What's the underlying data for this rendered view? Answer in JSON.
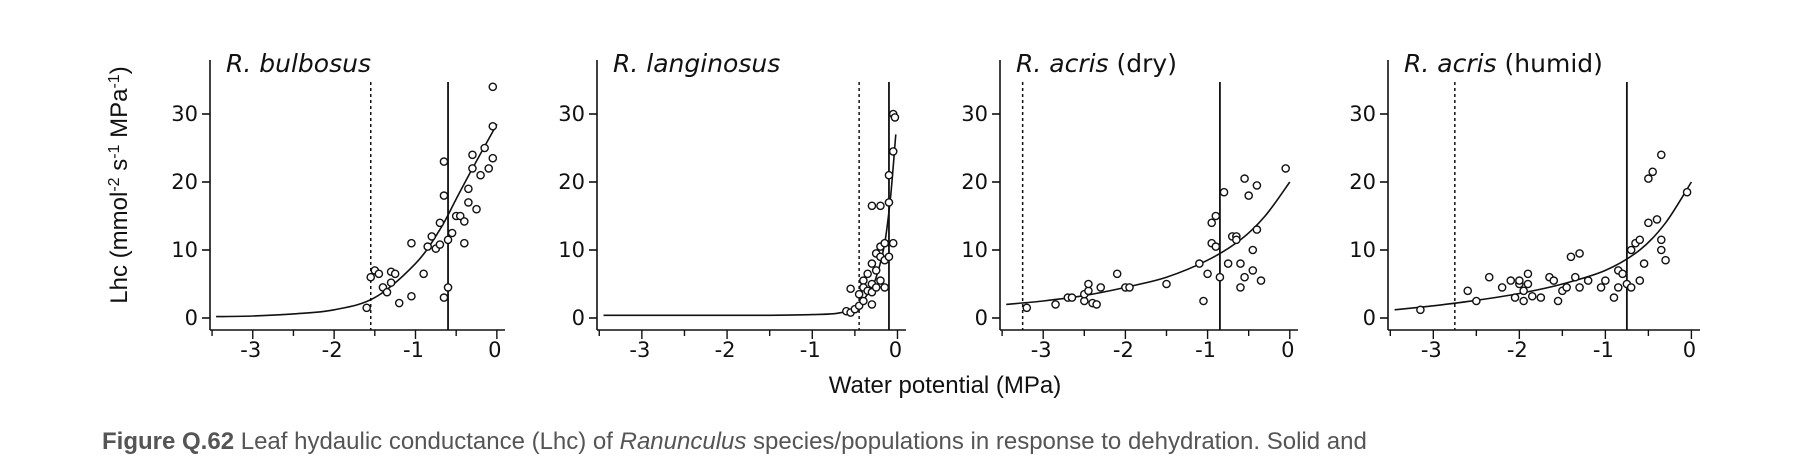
{
  "figure": {
    "ylabel_main": "Lhc (mmol",
    "ylabel_sup1": "-2",
    "ylabel_mid": " s",
    "ylabel_sup2": "-1",
    "ylabel_unit": " MPa",
    "ylabel_sup3": "-1",
    "ylabel_close": ")",
    "xlabel": "Water potential (MPa)"
  },
  "caption": {
    "label": "Figure Q.62",
    "text_before": " Leaf hydaulic conductance (Lhc) of  ",
    "genus": "Ranunculus",
    "text_after": " species/populations in response to dehydration. Solid and"
  },
  "chart_data": [
    {
      "type": "scatter",
      "title_italic": "R. bulbosus",
      "title_plain": "",
      "xlim": [
        -3.55,
        0.1
      ],
      "ylim": [
        -1,
        36
      ],
      "xticks": [
        -3,
        -2,
        -1,
        0
      ],
      "xtick_labels": [
        "-3",
        "-2",
        "-1",
        "0"
      ],
      "yticks": [
        0,
        10,
        20,
        30
      ],
      "ytick_labels": [
        "0",
        "10",
        "20",
        "30"
      ],
      "dotted_line_x": -1.55,
      "solid_line_x": -0.6,
      "curve": [
        [
          -3.45,
          0.2
        ],
        [
          -3.0,
          0.3
        ],
        [
          -2.5,
          0.6
        ],
        [
          -2.0,
          1.2
        ],
        [
          -1.5,
          3.0
        ],
        [
          -1.0,
          8.0
        ],
        [
          -0.7,
          13.0
        ],
        [
          -0.5,
          17.5
        ],
        [
          -0.3,
          22.0
        ],
        [
          0.0,
          28.5
        ]
      ],
      "points": [
        [
          -1.6,
          1.5
        ],
        [
          -1.55,
          6.0
        ],
        [
          -1.5,
          7.0
        ],
        [
          -1.45,
          6.5
        ],
        [
          -1.4,
          4.5
        ],
        [
          -1.35,
          3.8
        ],
        [
          -1.3,
          6.8
        ],
        [
          -1.3,
          5.2
        ],
        [
          -1.25,
          6.5
        ],
        [
          -1.2,
          2.2
        ],
        [
          -1.05,
          3.2
        ],
        [
          -1.05,
          11.0
        ],
        [
          -0.9,
          6.5
        ],
        [
          -0.85,
          10.5
        ],
        [
          -0.8,
          12.0
        ],
        [
          -0.75,
          10.2
        ],
        [
          -0.7,
          14.0
        ],
        [
          -0.7,
          10.8
        ],
        [
          -0.65,
          3.0
        ],
        [
          -0.65,
          23.0
        ],
        [
          -0.65,
          18.0
        ],
        [
          -0.6,
          4.5
        ],
        [
          -0.6,
          11.5
        ],
        [
          -0.55,
          12.5
        ],
        [
          -0.5,
          15.0
        ],
        [
          -0.45,
          15.0
        ],
        [
          -0.4,
          14.2
        ],
        [
          -0.4,
          11.0
        ],
        [
          -0.35,
          17.0
        ],
        [
          -0.35,
          19.0
        ],
        [
          -0.3,
          22.0
        ],
        [
          -0.3,
          24.0
        ],
        [
          -0.25,
          16.0
        ],
        [
          -0.2,
          21.0
        ],
        [
          -0.15,
          25.0
        ],
        [
          -0.1,
          22.0
        ],
        [
          -0.05,
          23.5
        ],
        [
          -0.05,
          28.2
        ],
        [
          -0.05,
          34.0
        ]
      ]
    },
    {
      "type": "scatter",
      "title_italic": "R. langinosus",
      "title_plain": "",
      "xlim": [
        -3.55,
        0.1
      ],
      "ylim": [
        -1,
        36
      ],
      "xticks": [
        -3,
        -2,
        -1,
        0
      ],
      "xtick_labels": [
        "-3",
        "-2",
        "-1",
        "0"
      ],
      "yticks": [
        0,
        10,
        20,
        30
      ],
      "ytick_labels": [
        "0",
        "10",
        "20",
        "30"
      ],
      "dotted_line_x": -0.45,
      "solid_line_x": -0.1,
      "curve": [
        [
          -3.45,
          0.4
        ],
        [
          -2.5,
          0.4
        ],
        [
          -1.5,
          0.4
        ],
        [
          -1.0,
          0.5
        ],
        [
          -0.7,
          0.7
        ],
        [
          -0.5,
          1.5
        ],
        [
          -0.35,
          3.5
        ],
        [
          -0.25,
          6.0
        ],
        [
          -0.15,
          11.0
        ],
        [
          -0.08,
          18.0
        ],
        [
          -0.02,
          27.0
        ]
      ],
      "points": [
        [
          -0.6,
          1.0
        ],
        [
          -0.55,
          0.8
        ],
        [
          -0.55,
          4.3
        ],
        [
          -0.5,
          1.3
        ],
        [
          -0.45,
          1.8
        ],
        [
          -0.45,
          3.5
        ],
        [
          -0.4,
          2.5
        ],
        [
          -0.4,
          5.5
        ],
        [
          -0.4,
          4.5
        ],
        [
          -0.35,
          4.0
        ],
        [
          -0.35,
          6.5
        ],
        [
          -0.3,
          5.0
        ],
        [
          -0.3,
          3.8
        ],
        [
          -0.3,
          8.0
        ],
        [
          -0.3,
          2.0
        ],
        [
          -0.3,
          16.5
        ],
        [
          -0.25,
          9.5
        ],
        [
          -0.25,
          4.5
        ],
        [
          -0.25,
          7.0
        ],
        [
          -0.2,
          10.5
        ],
        [
          -0.2,
          9.0
        ],
        [
          -0.2,
          5.5
        ],
        [
          -0.2,
          16.5
        ],
        [
          -0.15,
          8.5
        ],
        [
          -0.15,
          11.0
        ],
        [
          -0.15,
          4.5
        ],
        [
          -0.1,
          9.0
        ],
        [
          -0.1,
          17.0
        ],
        [
          -0.1,
          21.0
        ],
        [
          -0.05,
          11.0
        ],
        [
          -0.05,
          24.5
        ],
        [
          -0.05,
          30.0
        ],
        [
          -0.03,
          29.5
        ]
      ]
    },
    {
      "type": "scatter",
      "title_italic": "R. acris",
      "title_plain": "(dry)",
      "xlim": [
        -3.55,
        0.1
      ],
      "ylim": [
        -1,
        36
      ],
      "xticks": [
        -3,
        -2,
        -1,
        0
      ],
      "xtick_labels": [
        "-3",
        "-2",
        "-1",
        "0"
      ],
      "yticks": [
        0,
        10,
        20,
        30
      ],
      "ytick_labels": [
        "0",
        "10",
        "20",
        "30"
      ],
      "dotted_line_x": -3.25,
      "solid_line_x": -0.85,
      "curve": [
        [
          -3.45,
          2.0
        ],
        [
          -3.0,
          2.5
        ],
        [
          -2.5,
          3.3
        ],
        [
          -2.0,
          4.5
        ],
        [
          -1.5,
          6.0
        ],
        [
          -1.0,
          8.5
        ],
        [
          -0.6,
          11.5
        ],
        [
          -0.3,
          15.0
        ],
        [
          0.0,
          20.0
        ]
      ],
      "points": [
        [
          -3.2,
          1.5
        ],
        [
          -2.85,
          2.0
        ],
        [
          -2.7,
          3.0
        ],
        [
          -2.65,
          3.0
        ],
        [
          -2.5,
          2.5
        ],
        [
          -2.5,
          3.5
        ],
        [
          -2.45,
          4.0
        ],
        [
          -2.45,
          5.0
        ],
        [
          -2.4,
          2.2
        ],
        [
          -2.35,
          2.0
        ],
        [
          -2.3,
          4.5
        ],
        [
          -2.1,
          6.5
        ],
        [
          -2.0,
          4.5
        ],
        [
          -1.95,
          4.5
        ],
        [
          -1.5,
          5.0
        ],
        [
          -1.1,
          8.0
        ],
        [
          -1.05,
          2.5
        ],
        [
          -1.0,
          6.5
        ],
        [
          -0.95,
          14.0
        ],
        [
          -0.95,
          11.0
        ],
        [
          -0.9,
          15.0
        ],
        [
          -0.9,
          10.5
        ],
        [
          -0.85,
          6.0
        ],
        [
          -0.8,
          18.5
        ],
        [
          -0.75,
          8.0
        ],
        [
          -0.7,
          12.0
        ],
        [
          -0.65,
          12.0
        ],
        [
          -0.65,
          11.5
        ],
        [
          -0.6,
          8.0
        ],
        [
          -0.6,
          4.5
        ],
        [
          -0.55,
          6.0
        ],
        [
          -0.55,
          20.5
        ],
        [
          -0.5,
          18.0
        ],
        [
          -0.45,
          7.0
        ],
        [
          -0.45,
          10.0
        ],
        [
          -0.4,
          13.0
        ],
        [
          -0.4,
          19.5
        ],
        [
          -0.35,
          5.5
        ],
        [
          -0.05,
          22.0
        ]
      ]
    },
    {
      "type": "scatter",
      "title_italic": "R. acris",
      "title_plain": "(humid)",
      "xlim": [
        -3.55,
        0.1
      ],
      "ylim": [
        -1,
        36
      ],
      "xticks": [
        -3,
        -2,
        -1,
        0
      ],
      "xtick_labels": [
        "-3",
        "-2",
        "-1",
        "0"
      ],
      "yticks": [
        0,
        10,
        20,
        30
      ],
      "ytick_labels": [
        "0",
        "10",
        "20",
        "30"
      ],
      "dotted_line_x": -2.75,
      "solid_line_x": -0.75,
      "curve": [
        [
          -3.45,
          1.2
        ],
        [
          -3.0,
          1.8
        ],
        [
          -2.5,
          2.6
        ],
        [
          -2.0,
          3.6
        ],
        [
          -1.5,
          5.0
        ],
        [
          -1.0,
          7.0
        ],
        [
          -0.6,
          10.0
        ],
        [
          -0.3,
          14.0
        ],
        [
          0.0,
          20.0
        ]
      ],
      "points": [
        [
          -3.15,
          1.2
        ],
        [
          -2.6,
          4.0
        ],
        [
          -2.5,
          2.5
        ],
        [
          -2.35,
          6.0
        ],
        [
          -2.2,
          4.5
        ],
        [
          -2.1,
          5.5
        ],
        [
          -2.05,
          3.0
        ],
        [
          -2.0,
          5.0
        ],
        [
          -2.0,
          5.5
        ],
        [
          -1.95,
          4.0
        ],
        [
          -1.95,
          2.5
        ],
        [
          -1.9,
          5.0
        ],
        [
          -1.9,
          6.5
        ],
        [
          -1.85,
          3.2
        ],
        [
          -1.75,
          3.0
        ],
        [
          -1.65,
          6.0
        ],
        [
          -1.6,
          5.5
        ],
        [
          -1.55,
          2.5
        ],
        [
          -1.5,
          4.0
        ],
        [
          -1.45,
          4.5
        ],
        [
          -1.4,
          9.0
        ],
        [
          -1.35,
          6.0
        ],
        [
          -1.3,
          9.5
        ],
        [
          -1.3,
          4.5
        ],
        [
          -1.2,
          5.5
        ],
        [
          -1.05,
          4.5
        ],
        [
          -1.0,
          5.5
        ],
        [
          -0.9,
          3.0
        ],
        [
          -0.85,
          7.0
        ],
        [
          -0.85,
          4.5
        ],
        [
          -0.8,
          6.5
        ],
        [
          -0.75,
          5.0
        ],
        [
          -0.7,
          4.5
        ],
        [
          -0.7,
          10.0
        ],
        [
          -0.65,
          11.0
        ],
        [
          -0.6,
          5.5
        ],
        [
          -0.6,
          11.5
        ],
        [
          -0.55,
          8.0
        ],
        [
          -0.5,
          14.0
        ],
        [
          -0.5,
          20.5
        ],
        [
          -0.45,
          21.5
        ],
        [
          -0.4,
          14.5
        ],
        [
          -0.35,
          24.0
        ],
        [
          -0.35,
          10.0
        ],
        [
          -0.35,
          11.5
        ],
        [
          -0.3,
          8.5
        ],
        [
          -0.05,
          18.5
        ]
      ]
    }
  ]
}
